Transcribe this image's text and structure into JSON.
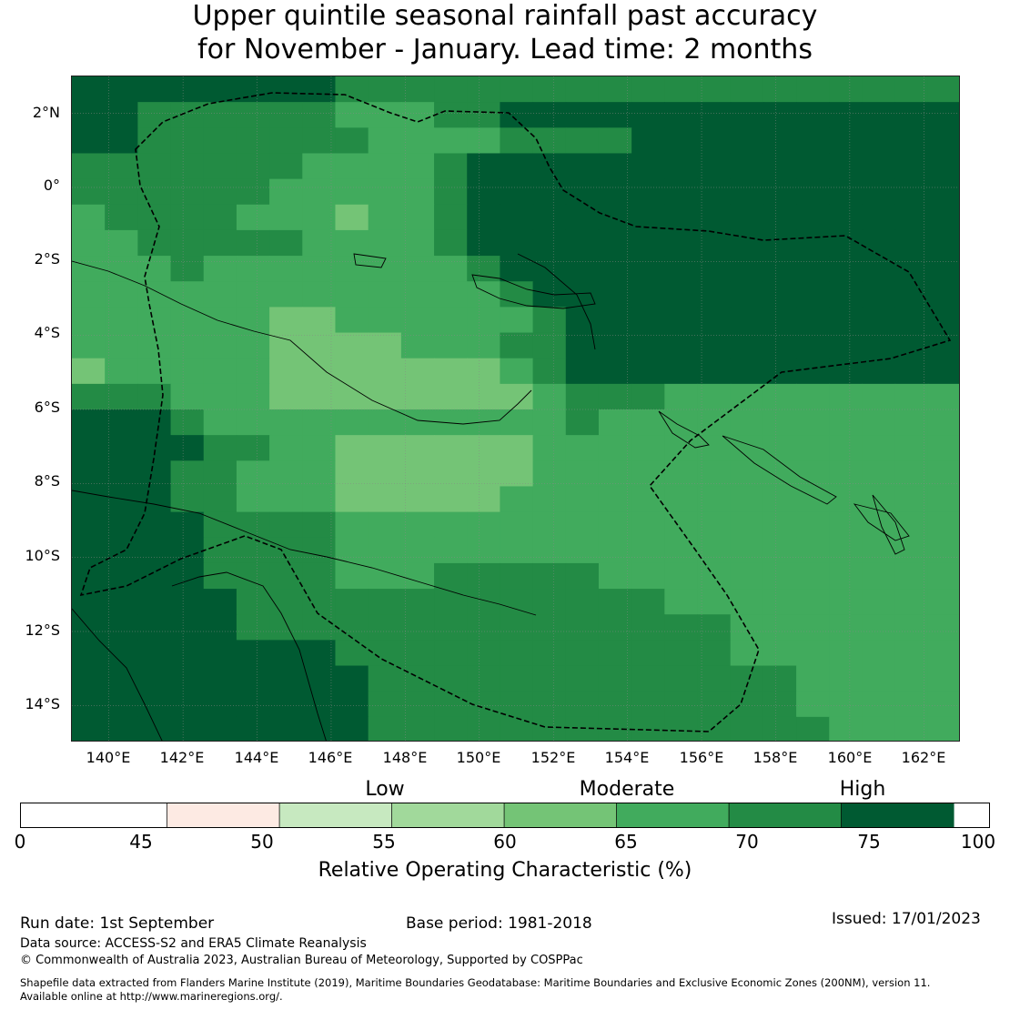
{
  "title_line1": "Upper quintile seasonal rainfall past accuracy",
  "title_line2": "for November - January. Lead time: 2 months",
  "map": {
    "lat_labels": [
      "2°N",
      "0°",
      "2°S",
      "4°S",
      "6°S",
      "8°S",
      "10°S",
      "12°S",
      "14°S"
    ],
    "lon_labels": [
      "140°E",
      "142°E",
      "144°E",
      "146°E",
      "148°E",
      "150°E",
      "152°E",
      "154°E",
      "156°E",
      "158°E",
      "160°E",
      "162°E"
    ],
    "lat_values": [
      2,
      0,
      -2,
      -4,
      -6,
      -8,
      -10,
      -12,
      -14
    ],
    "lon_values": [
      140,
      142,
      144,
      146,
      148,
      150,
      152,
      154,
      156,
      158,
      160,
      162
    ],
    "lon_range": [
      139,
      163
    ],
    "lat_range": [
      -15,
      3
    ],
    "grid_resolution_deg": 0.833,
    "rows": [
      "777777776666666666666666666",
      "776666665556677777777777777",
      "776666666555566667777777777",
      "666666655556777777777777777",
      "666666555556777777777777777",
      "566665554556777777777777777",
      "556666655556777777777777777",
      "555655555555677777777777777",
      "555555555555567777777777777",
      "555555445555556777777777777",
      "555555444455566777777777777",
      "455555444444456777777777777",
      "666555444444445666555555555",
      "777655555555555655555555555",
      "777766554444445555555555555",
      "777665554444445555555555555",
      "777665554444455555555555555",
      "777766665555555555555555555",
      "777766665555555555555555555",
      "777766665556666655555555555",
      "777776666666666666555555555",
      "777776666666666666665555555",
      "777777776666666666665555555",
      "777777777666666666666655555",
      "777777777666666666666655555",
      "777777777666666666666665555"
    ],
    "palette_colors": [
      "#ffffff",
      "#fdeae3",
      "#c7e9c0",
      "#a1d99b",
      "#74c476",
      "#41ab5d",
      "#238b45",
      "#005a32"
    ]
  },
  "legend": {
    "category_low": "Low",
    "category_moderate": "Moderate",
    "category_high": "High",
    "bounds": [
      0,
      45,
      50,
      55,
      60,
      65,
      70,
      75,
      100
    ],
    "tick_labels": [
      "0",
      "45",
      "50",
      "55",
      "60",
      "65",
      "70",
      "75",
      "100"
    ],
    "label": "Relative Operating Characteristic (%)"
  },
  "footer": {
    "run_date": "Run date: 1st September",
    "base_period": "Base period: 1981-2018",
    "issued": "Issued: 17/01/2023",
    "data_source": "Data source: ACCESS-S2 and ERA5 Climate Reanalysis",
    "copyright": "© Commonwealth of Australia 2023, Australian Bureau of Meteorology, Supported by COSPPac",
    "shapefile_line1": "Shapefile data extracted from Flanders Marine Institute (2019), Maritime Boundaries Geodatabase: Maritime Boundaries and Exclusive Economic Zones (200NM), version 11.",
    "shapefile_line2": "Available online at http://www.marineregions.org/."
  }
}
